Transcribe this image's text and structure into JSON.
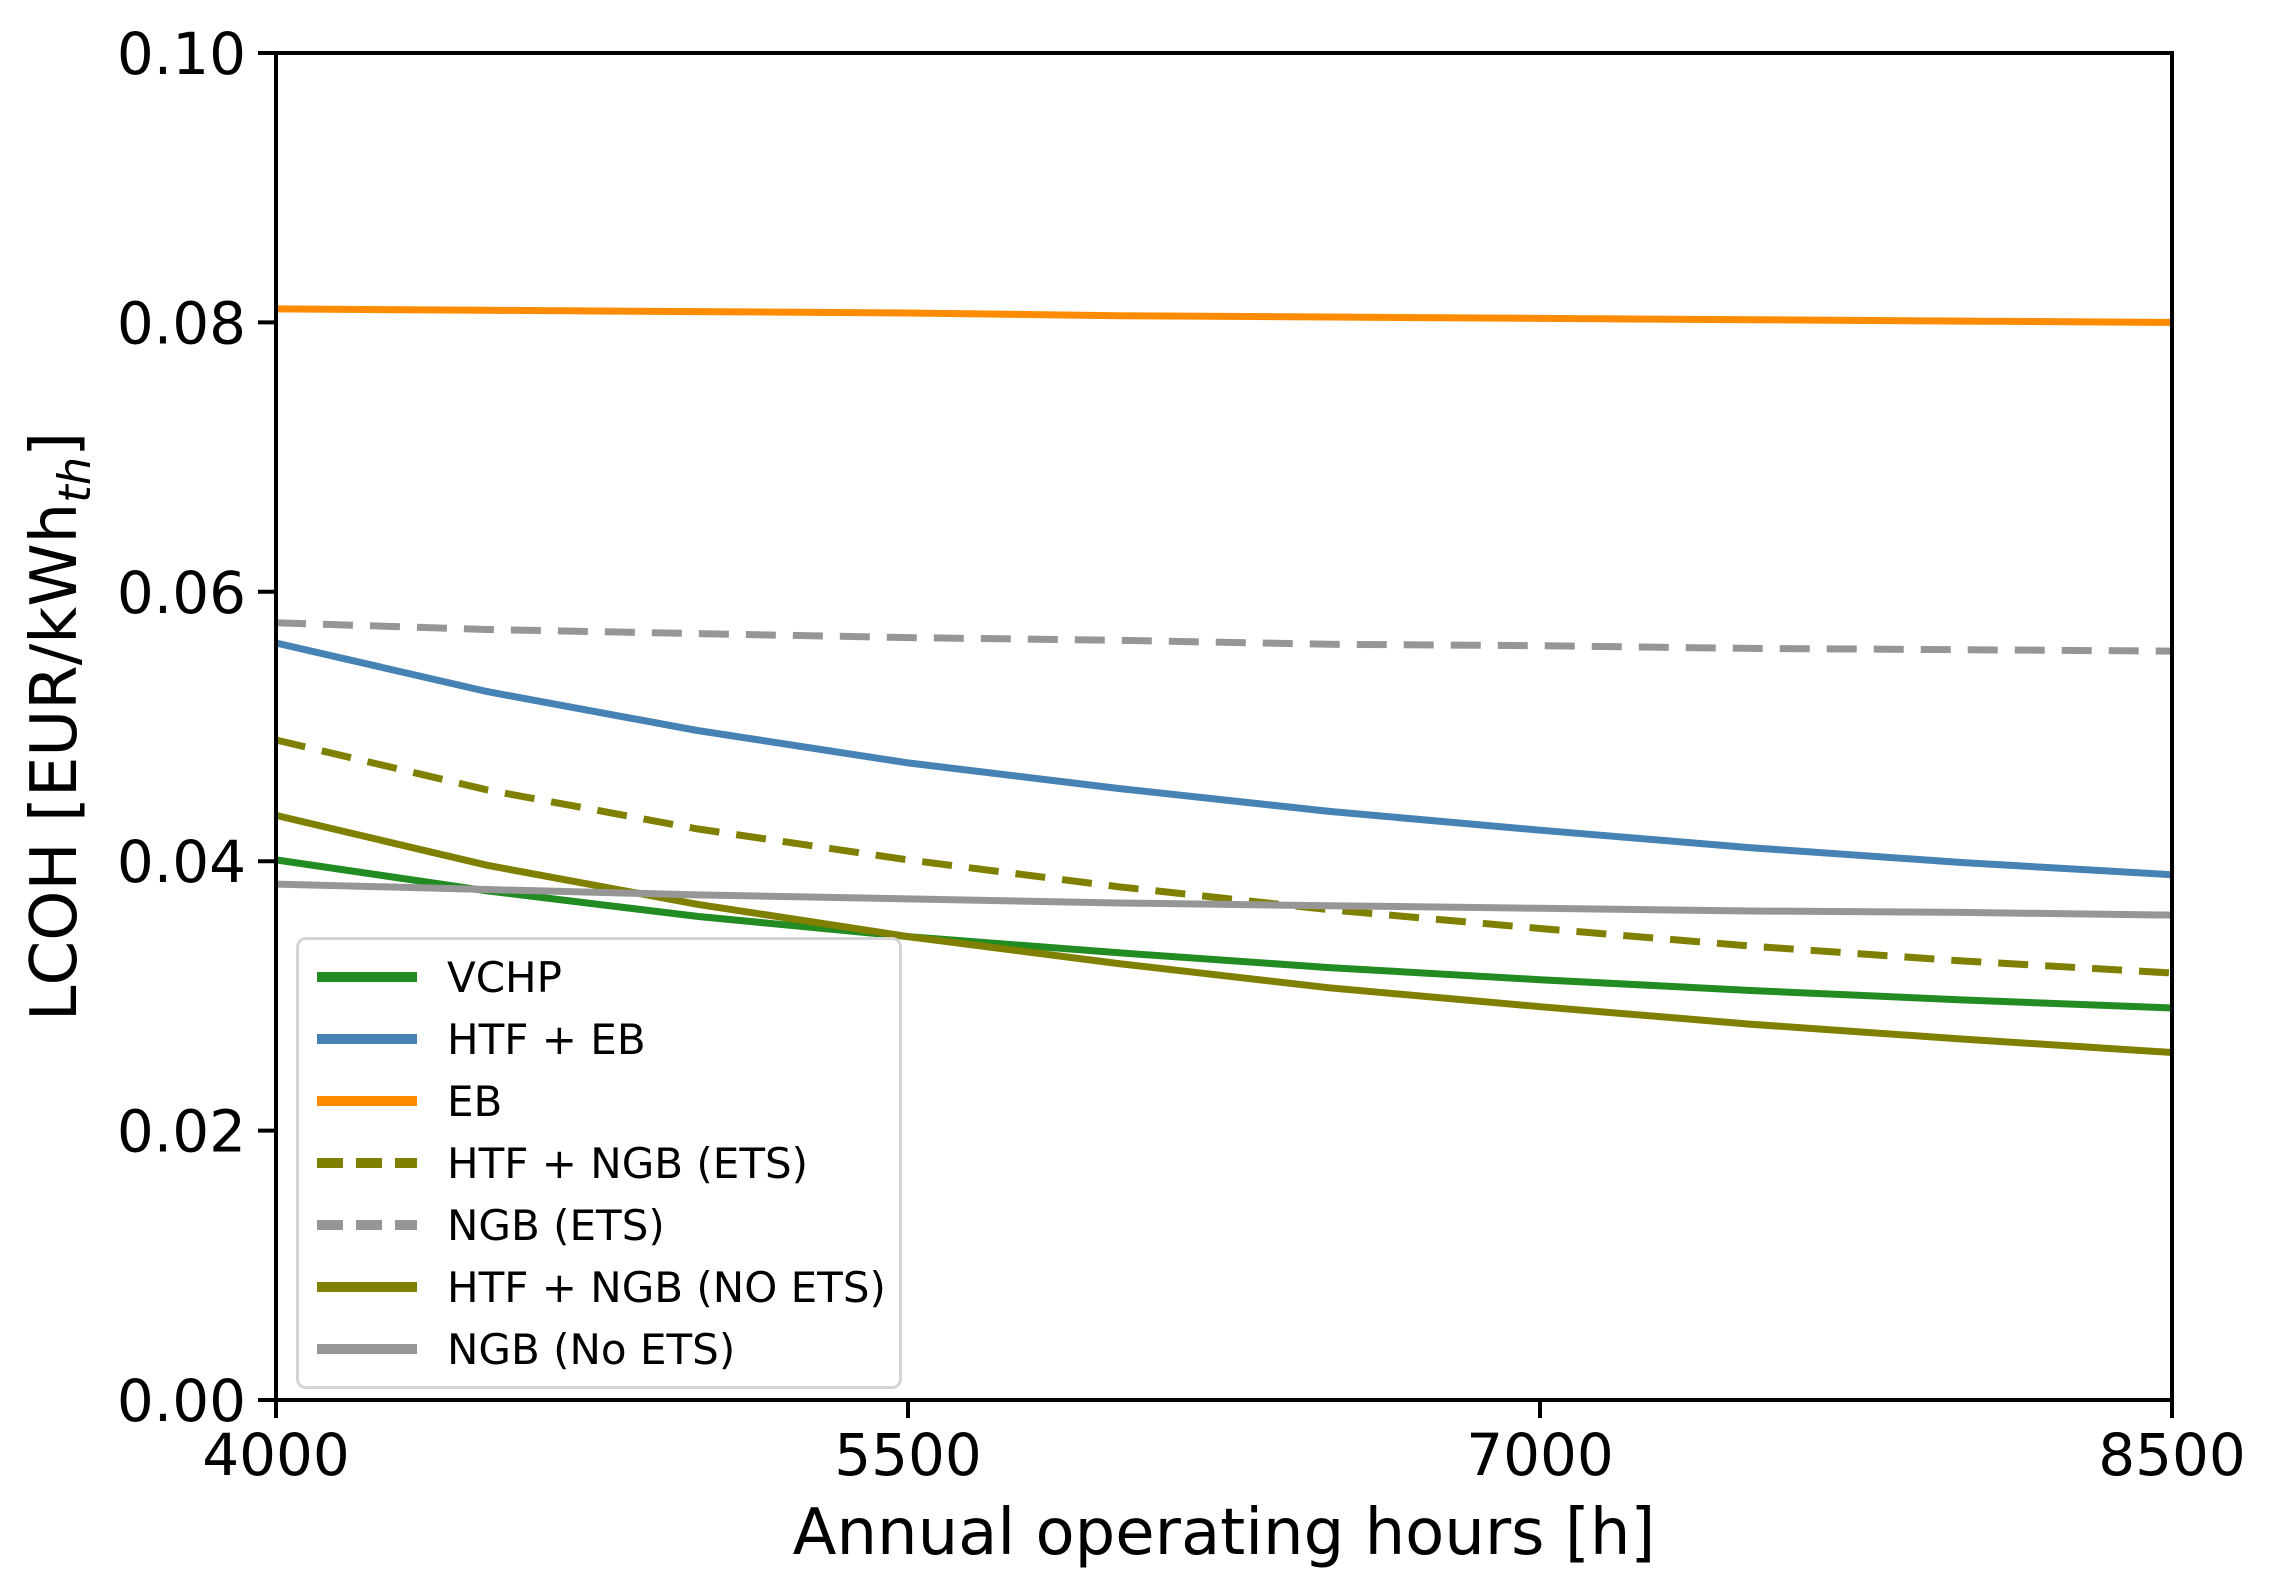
{
  "chart_data": {
    "type": "line",
    "title": "",
    "xlabel": "Annual operating hours [h]",
    "ylabel": {
      "pre": "LCOH [EUR/kWh",
      "sub": "th",
      "post": "]"
    },
    "xlim": [
      4000,
      8500
    ],
    "ylim": [
      0.0,
      0.1
    ],
    "xticks": [
      4000,
      5500,
      7000,
      8500
    ],
    "yticks": [
      0.0,
      0.02,
      0.04,
      0.06,
      0.08,
      0.1
    ],
    "grid": false,
    "legend_position": "lower-left",
    "axis_color": "#000000",
    "x": [
      4000,
      4500,
      5000,
      5500,
      6000,
      6500,
      7000,
      7500,
      8000,
      8500
    ],
    "series": [
      {
        "name": "VCHP",
        "color": "#228B22",
        "style": "solid",
        "values": [
          0.0401,
          0.0378,
          0.0359,
          0.0344,
          0.0332,
          0.0321,
          0.0312,
          0.0304,
          0.0297,
          0.0291
        ]
      },
      {
        "name": "HTF + EB",
        "color": "#4682B4",
        "style": "solid",
        "values": [
          0.0562,
          0.0526,
          0.0497,
          0.0473,
          0.0454,
          0.0437,
          0.0423,
          0.041,
          0.0399,
          0.039
        ]
      },
      {
        "name": "EB",
        "color": "#FF8C00",
        "style": "solid",
        "values": [
          0.081,
          0.0809,
          0.0808,
          0.0807,
          0.0805,
          0.0804,
          0.0803,
          0.0802,
          0.0801,
          0.08
        ]
      },
      {
        "name": "HTF + NGB (ETS)",
        "color": "#808000",
        "style": "dashed",
        "values": [
          0.049,
          0.0453,
          0.0424,
          0.0401,
          0.0381,
          0.0364,
          0.035,
          0.0337,
          0.0326,
          0.0317
        ]
      },
      {
        "name": "NGB (ETS)",
        "color": "#969696",
        "style": "dashed",
        "values": [
          0.0577,
          0.0572,
          0.0569,
          0.0566,
          0.0564,
          0.0561,
          0.056,
          0.0558,
          0.0557,
          0.0556
        ]
      },
      {
        "name": "HTF + NGB (NO ETS)",
        "color": "#808000",
        "style": "solid",
        "values": [
          0.0434,
          0.0397,
          0.0368,
          0.0344,
          0.0324,
          0.0306,
          0.0292,
          0.0279,
          0.0268,
          0.0258
        ]
      },
      {
        "name": "NGB (No ETS)",
        "color": "#969696",
        "style": "solid",
        "values": [
          0.0383,
          0.0379,
          0.0375,
          0.0372,
          0.0369,
          0.0367,
          0.0365,
          0.0363,
          0.0362,
          0.036
        ]
      }
    ]
  }
}
